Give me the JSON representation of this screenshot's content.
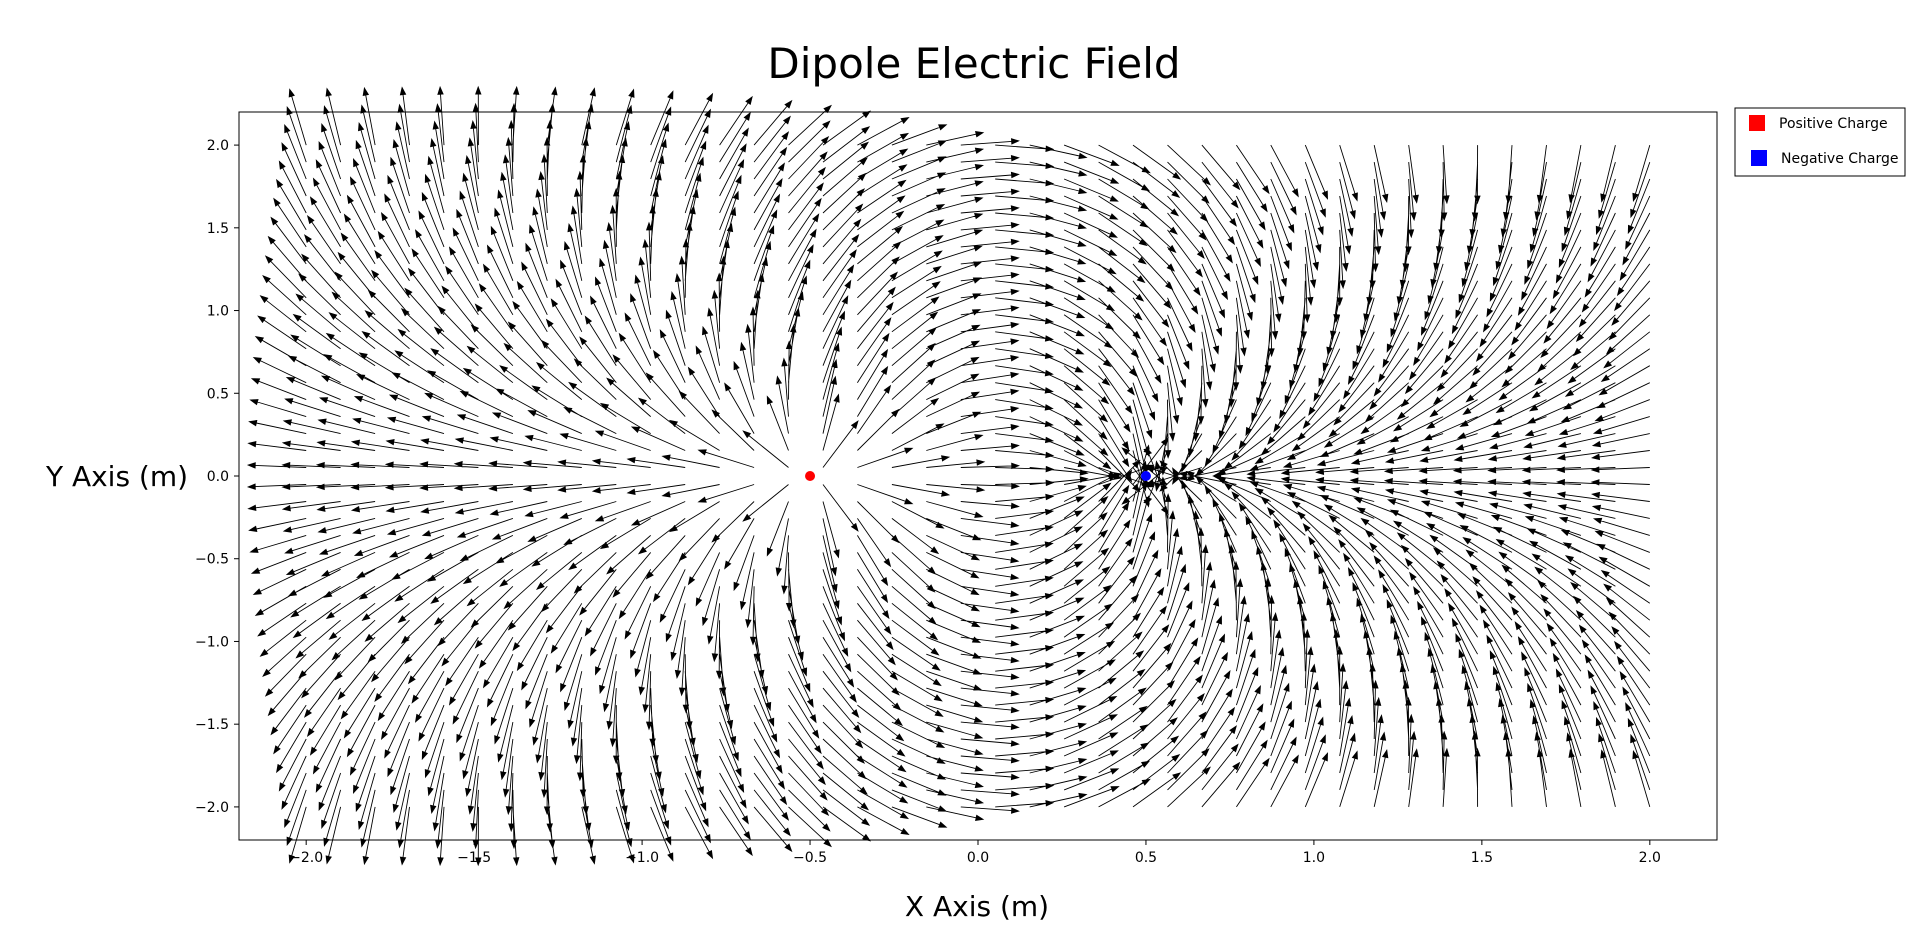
{
  "chart_data": {
    "type": "quiver",
    "title": "Dipole Electric Field",
    "xlabel": "X Axis (m)",
    "ylabel": "Y Axis (m)",
    "xlim": [
      -2.2,
      2.2
    ],
    "ylim": [
      -2.2,
      2.2
    ],
    "xticks": [
      -2.0,
      -1.5,
      -1.0,
      -0.5,
      0.0,
      0.5,
      1.0,
      1.5,
      2.0
    ],
    "yticks": [
      -2.0,
      -1.5,
      -1.0,
      -0.5,
      0.0,
      0.5,
      1.0,
      1.5,
      2.0
    ],
    "xtick_labels": [
      "−2.0",
      "−1.5",
      "−1.0",
      "−0.5",
      "0.0",
      "0.5",
      "1.0",
      "1.5",
      "2.0"
    ],
    "ytick_labels": [
      "−2.0",
      "−1.5",
      "−1.0",
      "−0.5",
      "0.0",
      "0.5",
      "1.0",
      "1.5",
      "2.0"
    ],
    "grid": false,
    "legend_position": "outside-top-right",
    "field": {
      "x_range": [
        -2.0,
        2.0
      ],
      "y_range": [
        -2.0,
        2.0
      ],
      "samples_per_axis": 40,
      "normalized": true
    },
    "charges": [
      {
        "name": "Positive Charge",
        "x": -0.5,
        "y": 0.0,
        "q": 1,
        "color": "#ff0000"
      },
      {
        "name": "Negative Charge",
        "x": 0.5,
        "y": 0.0,
        "q": -1,
        "color": "#0000ff"
      }
    ],
    "arrow_color": "#000000"
  },
  "legend": {
    "items": [
      {
        "label": "Positive Charge",
        "color": "#ff0000"
      },
      {
        "label": "Negative Charge",
        "color": "#0000ff"
      }
    ]
  }
}
